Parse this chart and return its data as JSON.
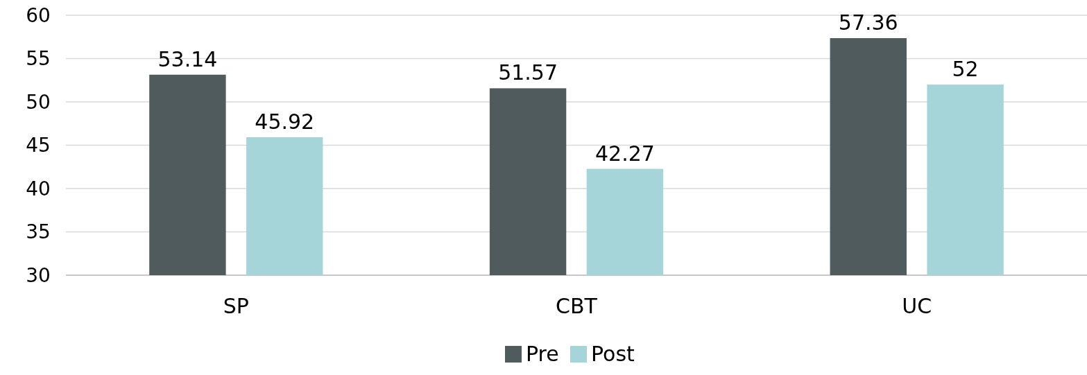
{
  "chart_data": {
    "type": "bar",
    "categories": [
      "SP",
      "CBT",
      "UC"
    ],
    "series": [
      {
        "name": "Pre",
        "color": "#4f5b5d",
        "values": [
          53.14,
          51.57,
          57.36
        ]
      },
      {
        "name": "Post",
        "color": "#a6d5d9",
        "values": [
          45.92,
          42.27,
          52
        ]
      }
    ],
    "ylim": [
      30,
      60
    ],
    "yticks": [
      30,
      35,
      40,
      45,
      50,
      55,
      60
    ],
    "grid": "y",
    "data_labels": true,
    "legend": "bottom"
  }
}
